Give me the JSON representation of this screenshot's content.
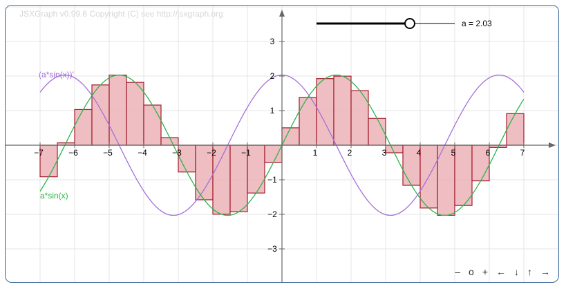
{
  "copyright": "JSXGraph v0.99.6 Copyright (C) see http://jsxgraph.org",
  "slider": {
    "label": "a = 2.03",
    "value": 2.03,
    "min": -8,
    "max": 8
  },
  "nav": {
    "zoom_out": "–",
    "zoom_reset": "o",
    "zoom_in": "+",
    "left": "←",
    "down": "↓",
    "up": "↑",
    "right": "→"
  },
  "colors": {
    "sin": "#2db34a",
    "deriv": "#a56fd9",
    "bar_fill": "#ebb3b7",
    "bar_stroke": "#a31b2c",
    "axis": "#666666",
    "grid": "#e4e4e4",
    "border": "#3c6a9a"
  },
  "chart_data": {
    "type": "line",
    "xlim": [
      -7.9,
      7.9
    ],
    "ylim": [
      -3.9,
      3.9
    ],
    "grid": true,
    "x_ticks": [
      -7,
      -6,
      -5,
      -4,
      -3,
      -2,
      -1,
      1,
      2,
      3,
      4,
      5,
      6,
      7
    ],
    "y_ticks": [
      -3,
      -2,
      -1,
      1,
      2,
      3
    ],
    "x_tick_labels": [
      "−7",
      "−6",
      "−5",
      "−4",
      "−3",
      "−2",
      "−1",
      "1",
      "2",
      "3",
      "4",
      "5",
      "6",
      "7"
    ],
    "y_tick_labels": [
      "−3",
      "−2",
      "−1",
      "1",
      "2",
      "3"
    ],
    "series": [
      {
        "name": "a*sin(x)",
        "function": "a*sin(x)"
      },
      {
        "name": "(a*sin(x))'",
        "function": "a*cos(x)"
      }
    ],
    "riemann": {
      "function": "a*sin(x)",
      "x_start": -7,
      "x_end": 7,
      "n": 28,
      "rule": "middle"
    }
  }
}
